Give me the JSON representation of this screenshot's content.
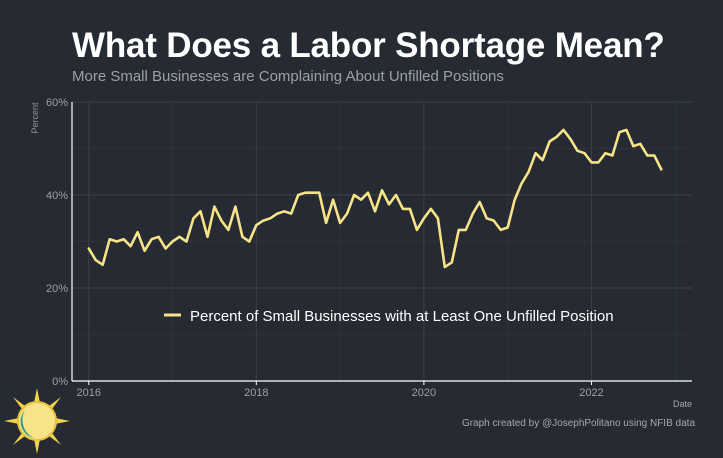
{
  "title": "What Does a Labor Shortage Mean?",
  "subtitle": "More Small Businesses are Complaining About Unfilled Positions",
  "credit": "Graph created by @JosephPolitano using NFIB data",
  "colors": {
    "background": "#252a33",
    "line": "#f7e388",
    "grid": "#3a3f48",
    "axis": "#ffffff",
    "tick_label": "#9ba0a8"
  },
  "chart_data": {
    "type": "line",
    "title": "",
    "xlabel": "Date",
    "ylabel": "Percent",
    "xlim": [
      2015.8,
      2023.2
    ],
    "ylim": [
      0,
      60
    ],
    "x_ticks": [
      2016,
      2018,
      2020,
      2022
    ],
    "x_tick_labels": [
      "2016",
      "2018",
      "2020",
      "2022"
    ],
    "y_ticks": [
      0,
      20,
      40,
      60
    ],
    "y_tick_labels": [
      "0%",
      "20%",
      "40%",
      "60%"
    ],
    "grid": true,
    "legend": "inside, bottom-center",
    "series": [
      {
        "name": "Percent of Small Businesses with at Least One Unfilled Position",
        "color": "#f7e388",
        "x_start": 2016.0,
        "x_step_months": 1,
        "values": [
          28.5,
          26,
          25,
          30.5,
          30,
          30.5,
          29,
          32,
          28,
          30.5,
          31,
          28.5,
          30,
          31,
          30,
          35,
          36.5,
          31,
          37.5,
          34.5,
          32.5,
          37.5,
          31,
          30,
          33.5,
          34.5,
          35,
          36,
          36.5,
          36,
          40,
          40.5,
          40.5,
          40.5,
          34,
          39,
          34,
          36,
          40,
          39,
          40.5,
          36.5,
          41,
          38,
          40,
          37,
          37,
          32.5,
          35,
          37,
          35,
          24.5,
          25.5,
          32.5,
          32.5,
          36,
          38.5,
          35,
          34.5,
          32.5,
          33,
          39,
          42.5,
          45,
          49,
          47.5,
          51.5,
          52.5,
          54,
          52,
          49.5,
          49,
          47,
          47,
          49,
          48.5,
          53.5,
          54,
          50.5,
          51,
          48.5,
          48.5,
          45.5
        ]
      }
    ]
  }
}
